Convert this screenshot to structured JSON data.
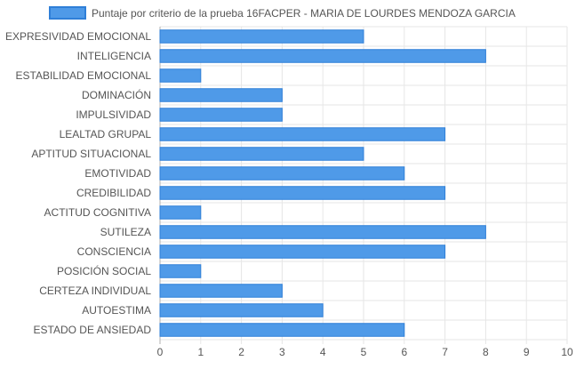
{
  "chart_data": {
    "type": "bar",
    "orientation": "horizontal",
    "categories": [
      "EXPRESIVIDAD EMOCIONAL",
      "INTELIGENCIA",
      "ESTABILIDAD EMOCIONAL",
      "DOMINACIÓN",
      "IMPULSIVIDAD",
      "LEALTAD GRUPAL",
      "APTITUD SITUACIONAL",
      "EMOTIVIDAD",
      "CREDIBILIDAD",
      "ACTITUD COGNITIVA",
      "SUTILEZA",
      "CONSCIENCIA",
      "POSICIÓN SOCIAL",
      "CERTEZA INDIVIDUAL",
      "AUTOESTIMA",
      "ESTADO DE ANSIEDAD"
    ],
    "series": [
      {
        "name": "Puntaje por criterio de la prueba 16FACPER - MARIA DE LOURDES MENDOZA GARCIA",
        "values": [
          5,
          8,
          1,
          3,
          3,
          7,
          5,
          6,
          7,
          1,
          8,
          7,
          1,
          3,
          4,
          6
        ],
        "color": "#4f9ae8",
        "border_color": "#2f7fd8"
      }
    ],
    "xlim": [
      0,
      10
    ],
    "x_ticks": [
      "0",
      "1",
      "2",
      "3",
      "4",
      "5",
      "6",
      "7",
      "8",
      "9",
      "10"
    ],
    "grid": true,
    "legend_position": "top",
    "title": "",
    "xlabel": "",
    "ylabel": ""
  },
  "colors": {
    "label_text": "#555555",
    "grid_line": "#e6e6e6",
    "axis_line": "#b0b0b0"
  }
}
